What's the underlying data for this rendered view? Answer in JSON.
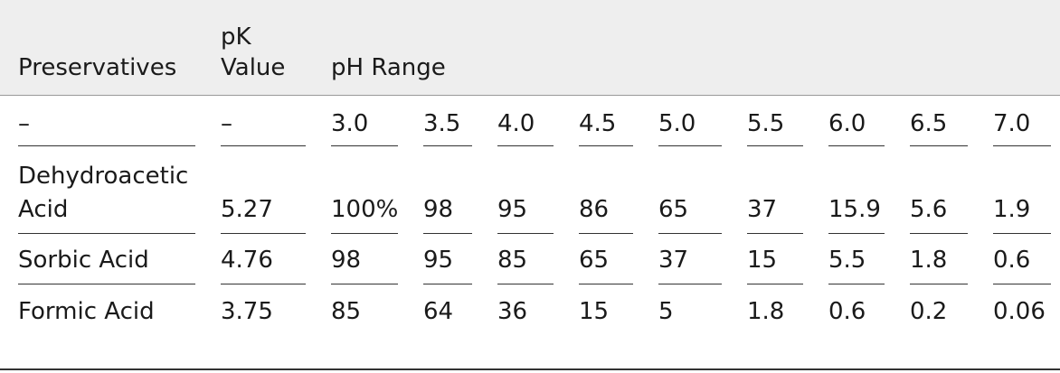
{
  "table": {
    "headers": {
      "preservatives": "Preservatives",
      "pk_line1": "pK",
      "pk_line2": "Value",
      "ph_range": "pH Range"
    },
    "ph_row": {
      "preservative": "–",
      "pk": "–",
      "values": [
        "3.0",
        "3.5",
        "4.0",
        "4.5",
        "5.0",
        "5.5",
        "6.0",
        "6.5",
        "7.0"
      ]
    },
    "rows": [
      {
        "name_line1": "Dehydroacetic",
        "name_line2": "Acid",
        "pk": "5.27",
        "values": [
          "100%",
          "98",
          "95",
          "86",
          "65",
          "37",
          "15.9",
          "5.6",
          "1.9"
        ]
      },
      {
        "name": "Sorbic Acid",
        "pk": "4.76",
        "values": [
          "98",
          "95",
          "85",
          "65",
          "37",
          "15",
          "5.5",
          "1.8",
          "0.6"
        ]
      },
      {
        "name": "Formic Acid",
        "pk": "3.75",
        "values": [
          "85",
          "64",
          "36",
          "15",
          "5",
          "1.8",
          "0.6",
          "0.2",
          "0.06"
        ]
      }
    ]
  }
}
